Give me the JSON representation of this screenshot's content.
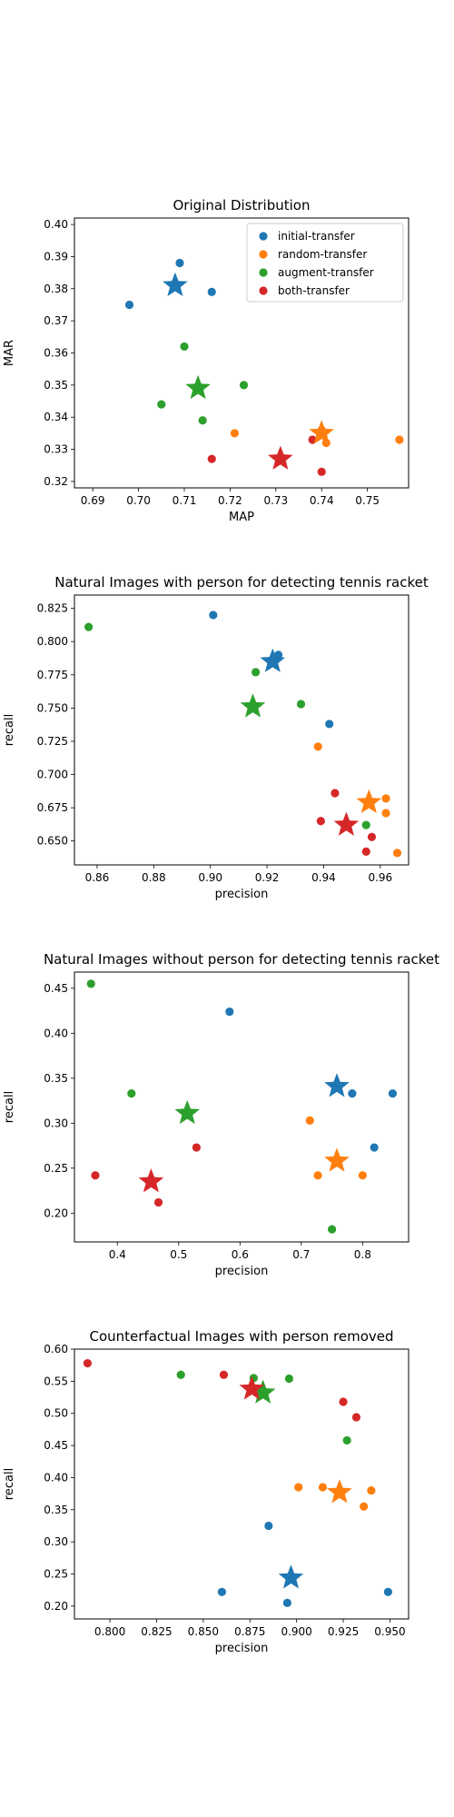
{
  "colors": {
    "initial-transfer": "#1f77b4",
    "random-transfer": "#ff7f0e",
    "augment-transfer": "#2ca02c",
    "both-transfer": "#d62728"
  },
  "legend": [
    "initial-transfer",
    "random-transfer",
    "augment-transfer",
    "both-transfer"
  ],
  "chart_data": [
    {
      "type": "scatter",
      "title": "Original Distribution",
      "xlabel": "MAP",
      "ylabel": "MAR",
      "xlim": [
        0.686,
        0.759
      ],
      "ylim": [
        0.318,
        0.402
      ],
      "xticks": [
        0.69,
        0.7,
        0.71,
        0.72,
        0.73,
        0.74,
        0.75
      ],
      "xtick_labels": [
        "0.69",
        "0.70",
        "0.71",
        "0.72",
        "0.73",
        "0.74",
        "0.75"
      ],
      "yticks": [
        0.32,
        0.33,
        0.34,
        0.35,
        0.36,
        0.37,
        0.38,
        0.39,
        0.4
      ],
      "ytick_labels": [
        "0.32",
        "0.33",
        "0.34",
        "0.35",
        "0.36",
        "0.37",
        "0.38",
        "0.39",
        "0.40"
      ],
      "legend": "upper right",
      "series": [
        {
          "name": "initial-transfer",
          "points": [
            [
              0.698,
              0.375
            ],
            [
              0.709,
              0.388
            ],
            [
              0.716,
              0.379
            ]
          ],
          "mean": [
            0.708,
            0.381
          ]
        },
        {
          "name": "random-transfer",
          "points": [
            [
              0.721,
              0.335
            ],
            [
              0.74,
              0.336
            ],
            [
              0.741,
              0.332
            ],
            [
              0.757,
              0.333
            ]
          ],
          "mean": [
            0.74,
            0.335
          ]
        },
        {
          "name": "augment-transfer",
          "points": [
            [
              0.71,
              0.362
            ],
            [
              0.723,
              0.35
            ],
            [
              0.705,
              0.344
            ],
            [
              0.714,
              0.339
            ]
          ],
          "mean": [
            0.713,
            0.349
          ]
        },
        {
          "name": "both-transfer",
          "points": [
            [
              0.716,
              0.327
            ],
            [
              0.738,
              0.333
            ],
            [
              0.74,
              0.323
            ]
          ],
          "mean": [
            0.731,
            0.327
          ]
        }
      ]
    },
    {
      "type": "scatter",
      "title": "Natural Images with person for detecting tennis racket",
      "xlabel": "precision",
      "ylabel": "recall",
      "xlim": [
        0.852,
        0.97
      ],
      "ylim": [
        0.632,
        0.835
      ],
      "xticks": [
        0.86,
        0.88,
        0.9,
        0.92,
        0.94,
        0.96
      ],
      "xtick_labels": [
        "0.86",
        "0.88",
        "0.90",
        "0.92",
        "0.94",
        "0.96"
      ],
      "yticks": [
        0.65,
        0.675,
        0.7,
        0.725,
        0.75,
        0.775,
        0.8,
        0.825
      ],
      "ytick_labels": [
        "0.650",
        "0.675",
        "0.700",
        "0.725",
        "0.750",
        "0.775",
        "0.800",
        "0.825"
      ],
      "series": [
        {
          "name": "initial-transfer",
          "points": [
            [
              0.901,
              0.82
            ],
            [
              0.924,
              0.79
            ],
            [
              0.942,
              0.738
            ]
          ],
          "mean": [
            0.922,
            0.785
          ]
        },
        {
          "name": "random-transfer",
          "points": [
            [
              0.938,
              0.721
            ],
            [
              0.962,
              0.682
            ],
            [
              0.962,
              0.671
            ],
            [
              0.966,
              0.641
            ]
          ],
          "mean": [
            0.956,
            0.679
          ]
        },
        {
          "name": "augment-transfer",
          "points": [
            [
              0.857,
              0.811
            ],
            [
              0.916,
              0.777
            ],
            [
              0.932,
              0.753
            ],
            [
              0.955,
              0.662
            ]
          ],
          "mean": [
            0.915,
            0.751
          ]
        },
        {
          "name": "both-transfer",
          "points": [
            [
              0.944,
              0.686
            ],
            [
              0.939,
              0.665
            ],
            [
              0.957,
              0.653
            ],
            [
              0.955,
              0.642
            ]
          ],
          "mean": [
            0.948,
            0.662
          ]
        }
      ]
    },
    {
      "type": "scatter",
      "title": "Natural Images without person for detecting tennis racket",
      "xlabel": "precision",
      "ylabel": "recall",
      "xlim": [
        0.33,
        0.875
      ],
      "ylim": [
        0.168,
        0.468
      ],
      "xticks": [
        0.4,
        0.5,
        0.6,
        0.7,
        0.8
      ],
      "xtick_labels": [
        "0.4",
        "0.5",
        "0.6",
        "0.7",
        "0.8"
      ],
      "yticks": [
        0.2,
        0.25,
        0.3,
        0.35,
        0.4,
        0.45
      ],
      "ytick_labels": [
        "0.20",
        "0.25",
        "0.30",
        "0.35",
        "0.40",
        "0.45"
      ],
      "series": [
        {
          "name": "initial-transfer",
          "points": [
            [
              0.583,
              0.424
            ],
            [
              0.783,
              0.333
            ],
            [
              0.849,
              0.333
            ],
            [
              0.819,
              0.273
            ]
          ],
          "mean": [
            0.758,
            0.341
          ]
        },
        {
          "name": "random-transfer",
          "points": [
            [
              0.714,
              0.303
            ],
            [
              0.727,
              0.242
            ],
            [
              0.8,
              0.242
            ]
          ],
          "mean": [
            0.758,
            0.258
          ]
        },
        {
          "name": "augment-transfer",
          "points": [
            [
              0.357,
              0.455
            ],
            [
              0.423,
              0.333
            ],
            [
              0.75,
              0.182
            ]
          ],
          "mean": [
            0.514,
            0.311
          ]
        },
        {
          "name": "both-transfer",
          "points": [
            [
              0.364,
              0.242
            ],
            [
              0.529,
              0.273
            ],
            [
              0.467,
              0.212
            ]
          ],
          "mean": [
            0.455,
            0.235
          ]
        }
      ]
    },
    {
      "type": "scatter",
      "title": "Counterfactual Images with person removed",
      "xlabel": "precision",
      "ylabel": "recall",
      "xlim": [
        0.781,
        0.96
      ],
      "ylim": [
        0.18,
        0.6
      ],
      "xticks": [
        0.8,
        0.825,
        0.85,
        0.875,
        0.9,
        0.925,
        0.95
      ],
      "xtick_labels": [
        "0.800",
        "0.825",
        "0.850",
        "0.875",
        "0.900",
        "0.925",
        "0.950"
      ],
      "yticks": [
        0.2,
        0.25,
        0.3,
        0.35,
        0.4,
        0.45,
        0.5,
        0.55,
        0.6
      ],
      "ytick_labels": [
        "0.20",
        "0.25",
        "0.30",
        "0.35",
        "0.40",
        "0.45",
        "0.50",
        "0.55",
        "0.60"
      ],
      "series": [
        {
          "name": "initial-transfer",
          "points": [
            [
              0.86,
              0.222
            ],
            [
              0.885,
              0.325
            ],
            [
              0.895,
              0.205
            ],
            [
              0.949,
              0.222
            ]
          ],
          "mean": [
            0.897,
            0.244
          ]
        },
        {
          "name": "random-transfer",
          "points": [
            [
              0.901,
              0.385
            ],
            [
              0.914,
              0.385
            ],
            [
              0.936,
              0.355
            ],
            [
              0.94,
              0.38
            ]
          ],
          "mean": [
            0.923,
            0.377
          ]
        },
        {
          "name": "augment-transfer",
          "points": [
            [
              0.838,
              0.56
            ],
            [
              0.877,
              0.555
            ],
            [
              0.896,
              0.554
            ],
            [
              0.927,
              0.458
            ]
          ],
          "mean": [
            0.882,
            0.532
          ]
        },
        {
          "name": "both-transfer",
          "points": [
            [
              0.788,
              0.578
            ],
            [
              0.861,
              0.56
            ],
            [
              0.925,
              0.518
            ],
            [
              0.932,
              0.494
            ]
          ],
          "mean": [
            0.876,
            0.538
          ]
        }
      ]
    }
  ]
}
